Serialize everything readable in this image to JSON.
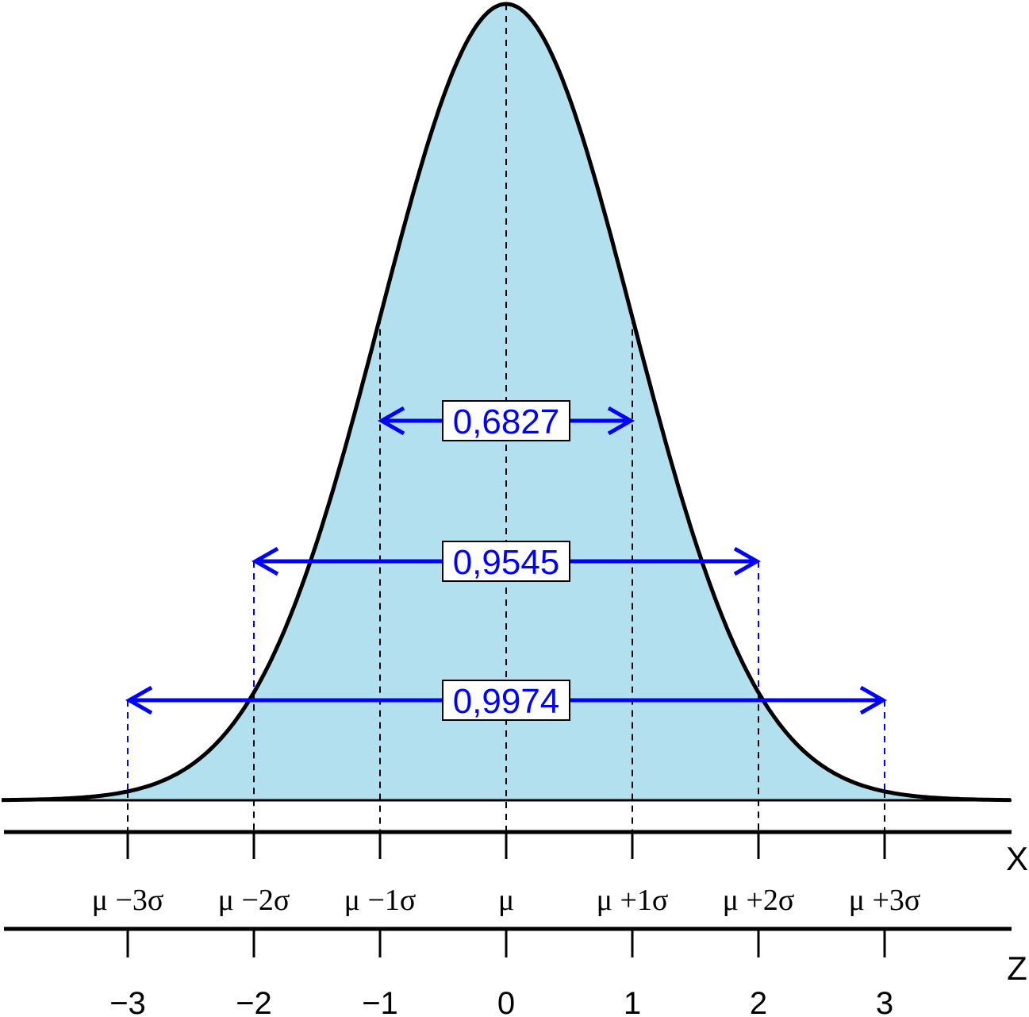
{
  "chart_data": {
    "type": "area",
    "x_range": [
      -4,
      4
    ],
    "curve": "standard normal density",
    "mean": 0,
    "sd": 1,
    "z_axis": {
      "label": "Z",
      "ticks": [
        -3,
        -2,
        -1,
        0,
        1,
        2,
        3
      ],
      "tick_labels": [
        "−3",
        "−2",
        "−1",
        "0",
        "1",
        "2",
        "3"
      ]
    },
    "x_axis": {
      "label": "X",
      "ticks": [
        -3,
        -2,
        -1,
        0,
        1,
        2,
        3
      ],
      "tick_labels": [
        "μ −3σ",
        "μ −2σ",
        "μ −1σ",
        "μ",
        "μ +1σ",
        "μ +2σ",
        "μ +3σ"
      ]
    },
    "intervals": [
      {
        "from": -1,
        "to": 1,
        "probability": "0,6827"
      },
      {
        "from": -2,
        "to": 2,
        "probability": "0,9545"
      },
      {
        "from": -3,
        "to": 3,
        "probability": "0,9974"
      }
    ],
    "colors": {
      "fill": "#b3e0ee",
      "curve": "#000000",
      "arrows": "#0000ff"
    }
  }
}
